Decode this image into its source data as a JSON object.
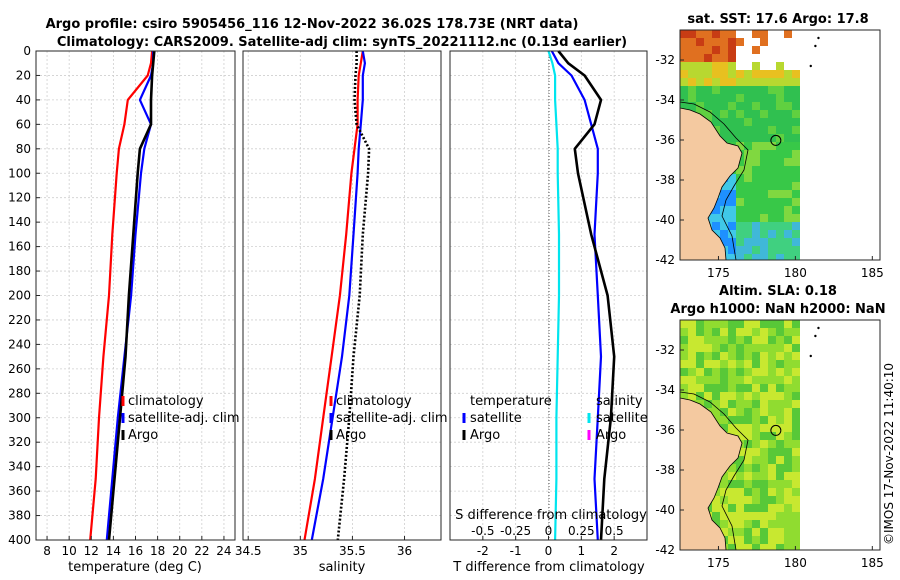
{
  "title": {
    "line1": "Argo profile: csiro 5905456_116 12-Nov-2022 36.02S 178.73E (NRT data)",
    "line2": "Climatology: CARS2009. Satellite-adj clim: synTS_20221112.nc (0.13d earlier)"
  },
  "chart_data": [
    {
      "type": "line",
      "name": "temperature-profile",
      "xlabel": "temperature (deg C)",
      "ylabel": "depth",
      "xlim": [
        7,
        25
      ],
      "ylim": [
        400,
        0
      ],
      "xticks": [
        8,
        10,
        12,
        14,
        16,
        18,
        20,
        22,
        24
      ],
      "yticks": [
        0,
        20,
        40,
        60,
        80,
        100,
        120,
        140,
        160,
        180,
        200,
        220,
        240,
        260,
        280,
        300,
        320,
        340,
        360,
        380,
        400
      ],
      "grid": true,
      "legend": [
        "climatology",
        "satellite-adj. clim",
        "Argo"
      ],
      "series": [
        {
          "name": "climatology",
          "color": "#ff0000",
          "depth": [
            0,
            10,
            20,
            40,
            60,
            80,
            100,
            150,
            200,
            250,
            300,
            350,
            400
          ],
          "values": [
            17.5,
            17.4,
            17.1,
            15.3,
            15.0,
            14.5,
            14.3,
            13.9,
            13.6,
            13.1,
            12.7,
            12.4,
            11.9
          ]
        },
        {
          "name": "satellite-adj. clim",
          "color": "#0000ff",
          "depth": [
            0,
            10,
            20,
            40,
            60,
            80,
            100,
            150,
            200,
            250,
            300,
            350,
            400
          ],
          "values": [
            17.6,
            17.6,
            17.4,
            16.4,
            17.4,
            16.8,
            16.5,
            16.0,
            15.6,
            15.0,
            14.4,
            13.9,
            13.4
          ]
        },
        {
          "name": "Argo",
          "color": "#000000",
          "depth": [
            0,
            10,
            20,
            40,
            60,
            80,
            100,
            150,
            200,
            250,
            300,
            350,
            400
          ],
          "values": [
            17.7,
            17.6,
            17.5,
            17.4,
            17.4,
            16.4,
            16.2,
            15.8,
            15.4,
            15.1,
            14.6,
            14.1,
            13.6
          ]
        }
      ]
    },
    {
      "type": "line",
      "name": "salinity-profile",
      "xlabel": "salinity",
      "ylabel": "depth",
      "xlim": [
        34.45,
        36.35
      ],
      "ylim": [
        400,
        0
      ],
      "xticks": [
        34.5,
        35,
        35.5,
        36
      ],
      "xticklabels": [
        "34.5",
        "35",
        "35.5",
        "36"
      ],
      "grid": true,
      "legend": [
        "climatology",
        "satellite-adj. clim",
        "Argo"
      ],
      "series": [
        {
          "name": "climatology",
          "color": "#ff0000",
          "depth": [
            0,
            10,
            20,
            40,
            60,
            80,
            100,
            150,
            200,
            250,
            300,
            350,
            400
          ],
          "values": [
            35.6,
            35.58,
            35.56,
            35.55,
            35.55,
            35.52,
            35.49,
            35.44,
            35.38,
            35.3,
            35.22,
            35.14,
            35.04
          ]
        },
        {
          "name": "satellite-adj. clim",
          "color": "#0000ff",
          "depth": [
            0,
            10,
            20,
            40,
            60,
            80,
            100,
            150,
            200,
            250,
            300,
            350,
            400
          ],
          "values": [
            35.6,
            35.62,
            35.6,
            35.6,
            35.58,
            35.56,
            35.55,
            35.51,
            35.47,
            35.4,
            35.31,
            35.22,
            35.11
          ]
        },
        {
          "name": "Argo",
          "color": "#000000",
          "depth": [
            0,
            10,
            20,
            40,
            60,
            80,
            100,
            150,
            200,
            250,
            300,
            350,
            400
          ],
          "values": [
            35.54,
            35.54,
            35.53,
            35.52,
            35.54,
            35.66,
            35.65,
            35.6,
            35.57,
            35.51,
            35.47,
            35.42,
            35.36
          ]
        }
      ]
    },
    {
      "type": "line",
      "name": "difference-profile",
      "xlabel": "T difference from climatology",
      "xlabel2": "S difference from climatology",
      "ylabel": "depth",
      "xlim": [
        -3,
        3
      ],
      "ylim": [
        400,
        0
      ],
      "xticks": [
        -2,
        -1,
        0,
        1,
        2
      ],
      "x2ticks": [
        -0.5,
        -0.25,
        0,
        0.25,
        0.5
      ],
      "x2ticklabels": [
        "-0.5",
        "-0.25",
        "0",
        "0.25",
        "0.5"
      ],
      "grid": true,
      "legend_left_title": "temperature",
      "legend_right_title": "salinity",
      "legend": [
        "satellite",
        "Argo",
        "satellite",
        "Argo"
      ],
      "series": [
        {
          "name": "temperature satellite",
          "color": "#0000ff",
          "depth": [
            0,
            10,
            20,
            40,
            60,
            80,
            100,
            150,
            200,
            250,
            300,
            350,
            400
          ],
          "values": [
            0.1,
            0.3,
            0.7,
            1.1,
            1.3,
            1.5,
            1.5,
            1.4,
            1.5,
            1.6,
            1.5,
            1.4,
            1.5
          ]
        },
        {
          "name": "temperature Argo",
          "color": "#000000",
          "depth": [
            0,
            10,
            20,
            40,
            60,
            80,
            100,
            150,
            200,
            250,
            300,
            350,
            400
          ],
          "values": [
            0.3,
            0.6,
            1.1,
            1.6,
            1.4,
            0.8,
            0.9,
            1.3,
            1.8,
            2.0,
            1.9,
            1.7,
            1.6
          ]
        },
        {
          "name": "salinity satellite",
          "color": "#00e5ee",
          "depth": [
            0,
            10,
            20,
            40,
            60,
            80,
            100,
            150,
            200,
            250,
            300,
            350,
            400
          ],
          "values": [
            0.0,
            0.03,
            0.05,
            0.05,
            0.06,
            0.07,
            0.07,
            0.08,
            0.08,
            0.07,
            0.06,
            0.06,
            0.05
          ]
        },
        {
          "name": "salinity Argo",
          "color": "#ff00ff",
          "depth": [],
          "values": []
        }
      ]
    },
    {
      "type": "heatmap",
      "name": "sst-map",
      "title": "sat. SST: 17.6 Argo: 17.8",
      "xlim": [
        172.5,
        185.5
      ],
      "ylim": [
        -42,
        -30.5
      ],
      "xticks": [
        175,
        180,
        185
      ],
      "yticks": [
        -32,
        -34,
        -36,
        -38,
        -40,
        -42
      ],
      "marker": {
        "lon": 178.73,
        "lat": -36.02
      }
    },
    {
      "type": "heatmap",
      "name": "sla-map",
      "title": "Altim. SLA: 0.18",
      "title2": "Argo h1000: NaN h2000: NaN",
      "xlim": [
        172.5,
        185.5
      ],
      "ylim": [
        -42,
        -30.5
      ],
      "xticks": [
        175,
        180,
        185
      ],
      "yticks": [
        -32,
        -34,
        -36,
        -38,
        -40,
        -42
      ],
      "marker": {
        "lon": 178.73,
        "lat": -36.02
      }
    }
  ],
  "legend": {
    "climatology": "climatology",
    "satellite_adj": "satellite-adj. clim",
    "argo": "Argo",
    "temperature": "temperature",
    "salinity": "salinity",
    "satellite": "satellite"
  },
  "colors": {
    "climatology": "#ff0000",
    "satellite": "#0000ff",
    "argo": "#000000",
    "sal_satellite": "#00e5ee",
    "sal_argo": "#ff00ff",
    "land": "#f4c9a0"
  },
  "watermark": "©IMOS 17-Nov-2022 11:40:10"
}
